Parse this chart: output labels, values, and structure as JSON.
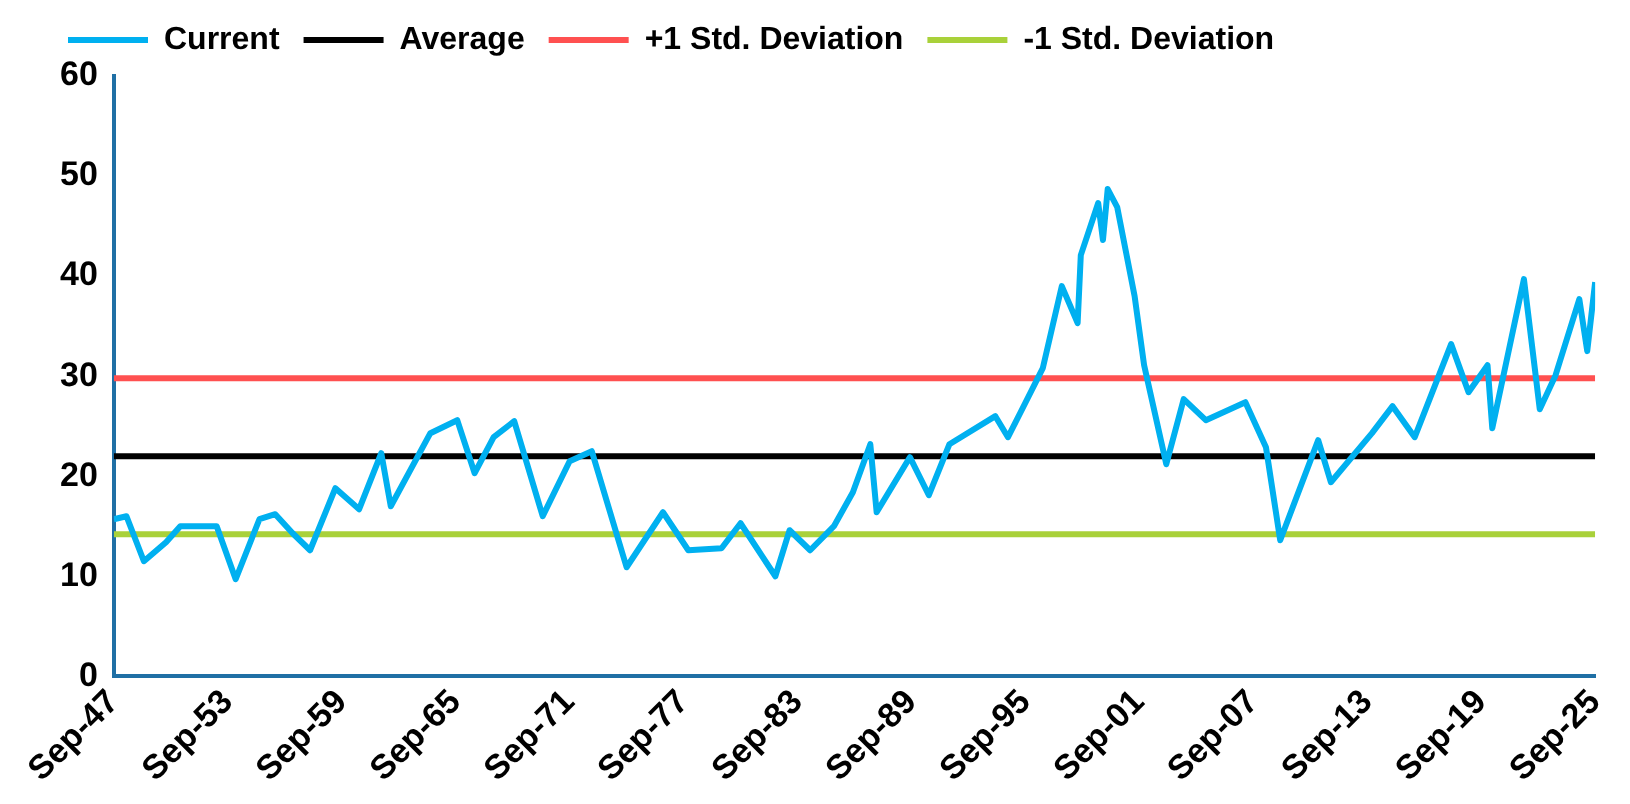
{
  "chart_data": {
    "type": "line",
    "x": [
      "1947-09",
      "1948-05",
      "1949-04",
      "1950-06",
      "1951-03",
      "1953-02",
      "1954-02",
      "1955-05",
      "1956-03",
      "1957-02",
      "1958-01",
      "1959-05",
      "1960-08",
      "1961-10",
      "1962-04",
      "1964-05",
      "1965-10",
      "1966-09",
      "1967-09",
      "1968-10",
      "1970-04",
      "1971-09",
      "1972-11",
      "1974-09",
      "1976-08",
      "1977-12",
      "1979-09",
      "1980-09",
      "1982-07",
      "1983-04",
      "1984-05",
      "1985-08",
      "1986-08",
      "1987-07",
      "1987-11",
      "1989-08",
      "1990-08",
      "1991-09",
      "1994-02",
      "1994-10",
      "1996-08",
      "1997-08",
      "1998-06",
      "1998-08",
      "1999-07",
      "1999-10",
      "2000-01",
      "2000-07",
      "2001-06",
      "2001-12",
      "2003-02",
      "2004-01",
      "2005-03",
      "2007-04",
      "2008-05",
      "2009-02",
      "2011-02",
      "2011-10",
      "2013-12",
      "2015-01",
      "2016-03",
      "2018-02",
      "2019-01",
      "2020-01",
      "2020-04",
      "2021-12",
      "2022-10",
      "2023-08",
      "2024-11",
      "2025-04",
      "2025-09"
    ],
    "series": [
      {
        "name": "Current",
        "color": "#00b0f0",
        "values": [
          15.7,
          16.0,
          11.5,
          13.4,
          15.0,
          15.0,
          9.7,
          15.7,
          16.2,
          14.3,
          12.6,
          18.8,
          16.7,
          22.3,
          17.0,
          24.3,
          25.6,
          20.3,
          23.9,
          25.5,
          16.0,
          21.5,
          22.5,
          10.9,
          16.4,
          12.6,
          12.8,
          15.3,
          10.0,
          14.6,
          12.6,
          15.0,
          18.4,
          23.2,
          16.4,
          21.9,
          18.1,
          23.2,
          26.0,
          23.9,
          30.8,
          39.0,
          35.3,
          42.1,
          47.3,
          43.6,
          48.7,
          46.9,
          38.0,
          31.1,
          21.2,
          27.7,
          25.6,
          27.4,
          22.9,
          13.6,
          23.6,
          19.4,
          24.3,
          27.0,
          23.9,
          33.2,
          28.4,
          31.1,
          24.8,
          39.7,
          26.7,
          30.1,
          37.7,
          32.5,
          39.4
        ]
      }
    ],
    "ref_lines": [
      {
        "axis": "y",
        "value": 22,
        "label": "Average",
        "color": "#000000"
      },
      {
        "axis": "y",
        "value": 29.8,
        "label": "+1 Std. Deviation",
        "color": "#ff5050"
      },
      {
        "axis": "y",
        "value": 14.2,
        "label": "-1 Std. Deviation",
        "color": "#a9d13a"
      }
    ],
    "xlim": [
      "1947-09",
      "2025-09"
    ],
    "xticks": [
      {
        "value": "1947-09",
        "label": "Sep-47"
      },
      {
        "value": "1953-09",
        "label": "Sep-53"
      },
      {
        "value": "1959-09",
        "label": "Sep-59"
      },
      {
        "value": "1965-09",
        "label": "Sep-65"
      },
      {
        "value": "1971-09",
        "label": "Sep-71"
      },
      {
        "value": "1977-09",
        "label": "Sep-77"
      },
      {
        "value": "1983-09",
        "label": "Sep-83"
      },
      {
        "value": "1989-09",
        "label": "Sep-89"
      },
      {
        "value": "1995-09",
        "label": "Sep-95"
      },
      {
        "value": "2001-09",
        "label": "Sep-01"
      },
      {
        "value": "2007-09",
        "label": "Sep-07"
      },
      {
        "value": "2013-09",
        "label": "Sep-13"
      },
      {
        "value": "2019-09",
        "label": "Sep-19"
      },
      {
        "value": "2025-09",
        "label": "Sep-25"
      }
    ],
    "ylim": [
      0,
      60
    ],
    "yticks": [
      0,
      10,
      20,
      30,
      40,
      50,
      60
    ],
    "grid": false,
    "legend": "top",
    "marker": "none",
    "line_style": "solid"
  }
}
